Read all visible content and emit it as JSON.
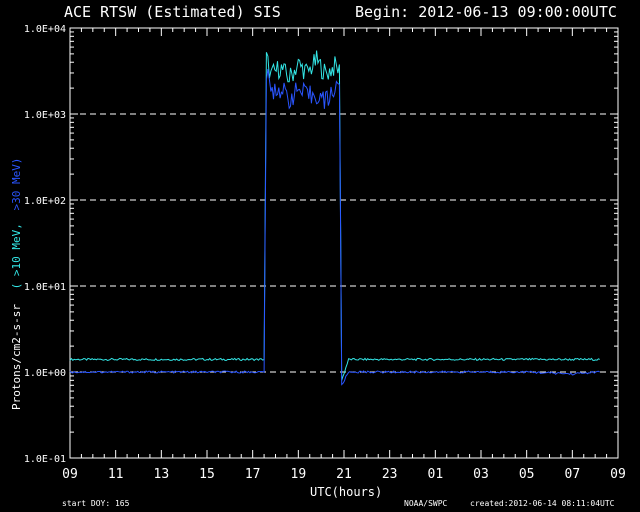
{
  "chart_data": {
    "type": "line",
    "title_left": "ACE RTSW (Estimated) SIS",
    "title_right": "Begin: 2012-06-13 09:00:00UTC",
    "xlabel": "UTC(hours)",
    "ylabel_prefix": "Protons/cm2-s-sr",
    "ylabel_paren_open": "(",
    "ylabel_10mev": ">10 MeV,",
    "ylabel_30mev": ">30 MeV)",
    "y_scale": "log",
    "ylim": [
      0.1,
      10000
    ],
    "xlim_hours": [
      0,
      24
    ],
    "x_tick_labels": [
      "09",
      "11",
      "13",
      "15",
      "17",
      "19",
      "21",
      "23",
      "01",
      "03",
      "05",
      "07",
      "09"
    ],
    "y_tick_labels": [
      "1.0E+04",
      "1.0E+03",
      "1.0E+02",
      "1.0E+01",
      "1.0E+00",
      "1.0E-01"
    ],
    "dashed_reference_lines": [
      1000,
      100,
      10,
      1
    ],
    "footer_left": "start DOY:  165",
    "footer_mid": "NOAA/SWPC",
    "footer_right": "created:2012-06-14 08:11:04UTC",
    "series": [
      {
        "name": ">10 MeV",
        "color": "#33e6e6",
        "x_hours": [
          0,
          2,
          4,
          6,
          8,
          8.5,
          8.6,
          8.8,
          9.2,
          9.6,
          10,
          10.4,
          10.8,
          11.2,
          11.6,
          11.8,
          11.9,
          12.2,
          14,
          16,
          18,
          20,
          22,
          23.2
        ],
        "values": [
          1.4,
          1.4,
          1.4,
          1.4,
          1.4,
          1.4,
          4500,
          2800,
          3500,
          2600,
          3800,
          3000,
          4200,
          2900,
          3600,
          3200,
          0.8,
          1.4,
          1.4,
          1.4,
          1.4,
          1.4,
          1.4,
          1.4
        ]
      },
      {
        "name": ">30 MeV",
        "color": "#2a55ff",
        "x_hours": [
          0,
          2,
          4,
          6,
          8,
          8.5,
          8.6,
          8.8,
          9.2,
          9.6,
          10,
          10.4,
          10.8,
          11.2,
          11.6,
          11.8,
          11.9,
          12.2,
          14,
          16,
          18,
          20,
          22,
          23.2
        ],
        "values": [
          1.0,
          1.0,
          1.0,
          1.0,
          1.0,
          1.0,
          3000,
          1800,
          2000,
          1500,
          1900,
          1600,
          1700,
          1400,
          2000,
          2500,
          0.7,
          1.0,
          1.0,
          1.0,
          1.0,
          1.0,
          0.95,
          1.0
        ]
      }
    ]
  }
}
